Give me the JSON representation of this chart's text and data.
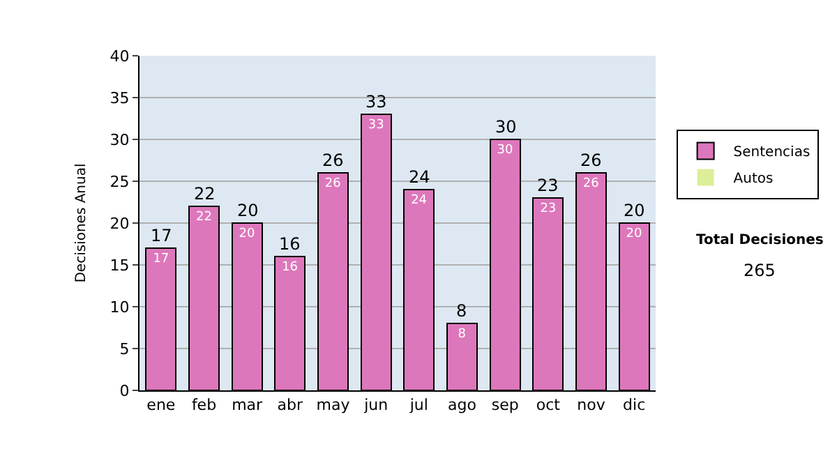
{
  "chart_data": {
    "type": "bar",
    "stacked": true,
    "ylabel": "Decisiones Anual",
    "categories": [
      "ene",
      "feb",
      "mar",
      "abr",
      "may",
      "jun",
      "jul",
      "ago",
      "sep",
      "oct",
      "nov",
      "dic"
    ],
    "series": [
      {
        "name": "Sentencias",
        "color": "#dd77bb",
        "values": [
          17,
          22,
          20,
          16,
          26,
          33,
          24,
          8,
          30,
          23,
          26,
          20
        ],
        "value_labels": [
          "17",
          "22",
          "20",
          "16",
          "26",
          "33",
          "24",
          "8",
          "30",
          "23",
          "26",
          "20"
        ]
      },
      {
        "name": "Autos",
        "color": "#ddee99",
        "values": [
          0,
          0,
          0,
          0,
          0,
          0,
          0,
          0,
          0,
          0,
          0,
          0
        ]
      }
    ],
    "totals": [
      "17",
      "22",
      "20",
      "16",
      "26",
      "33",
      "24",
      "8",
      "30",
      "23",
      "26",
      "20"
    ],
    "ylim": [
      0,
      40
    ],
    "yticks": [
      0,
      5,
      10,
      15,
      20,
      25,
      30,
      35,
      40
    ],
    "grid": "y",
    "legend": "right",
    "annotations": [
      "Total Decisiones",
      "265"
    ]
  }
}
